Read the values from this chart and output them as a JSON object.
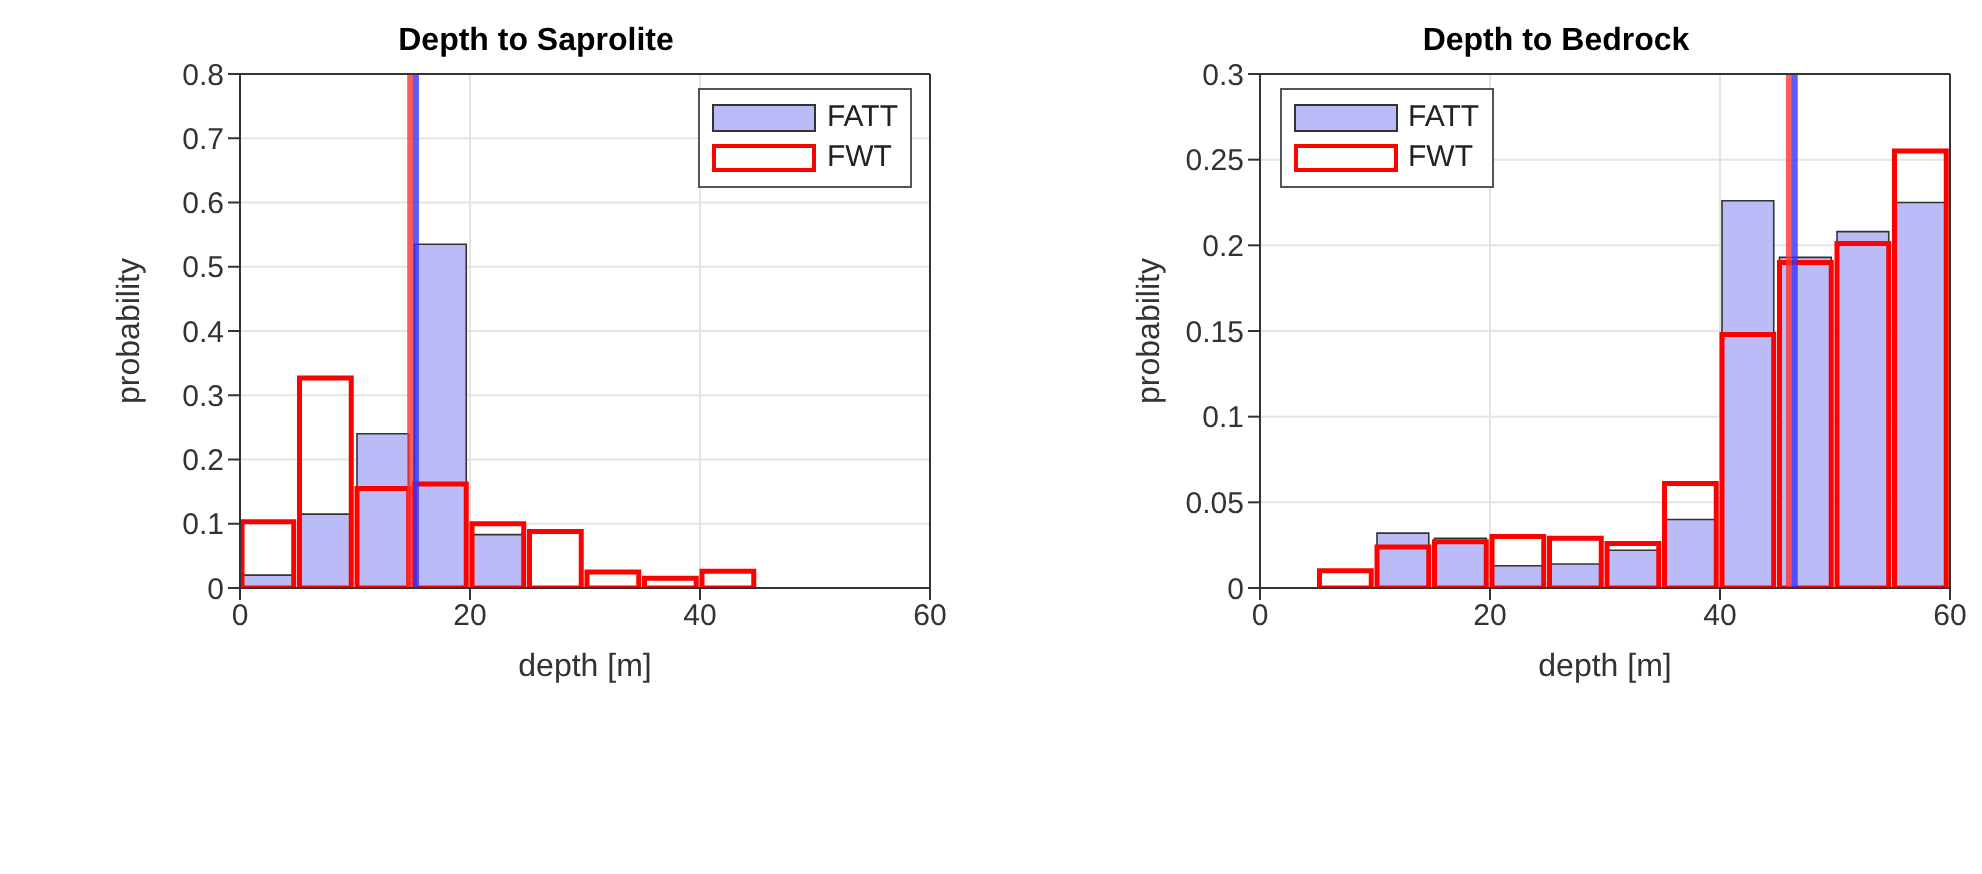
{
  "chart_data": [
    {
      "type": "histogram",
      "title": "Depth to Saprolite",
      "xlabel": "depth [m]",
      "ylabel": "probability",
      "bins": [
        0,
        5,
        10,
        15,
        20,
        25,
        30,
        35,
        40,
        45,
        50,
        55,
        60
      ],
      "series": [
        {
          "name": "FATT",
          "color": "#bbbbf8",
          "values": [
            0.02,
            0.115,
            0.24,
            0.535,
            0.083,
            0,
            0,
            0,
            0,
            0,
            0,
            0
          ]
        },
        {
          "name": "FWT",
          "color": "#ff0000",
          "values": [
            0.103,
            0.327,
            0.155,
            0.162,
            0.1,
            0.088,
            0.025,
            0.015,
            0.026,
            0,
            0,
            0
          ]
        }
      ],
      "ref_lines": [
        {
          "axis": "x",
          "value": 14.8,
          "color": "#ff3333"
        },
        {
          "axis": "x",
          "value": 15.3,
          "color": "#3333ff"
        }
      ],
      "xlim": [
        0,
        60
      ],
      "xticks": [
        0,
        20,
        40,
        60
      ],
      "ylim": [
        0,
        0.8
      ],
      "yticks": [
        0,
        0.1,
        0.2,
        0.3,
        0.4,
        0.5,
        0.6,
        0.7,
        0.8
      ],
      "grid": true,
      "legend": "top right"
    },
    {
      "type": "histogram",
      "title": "Depth to Bedrock",
      "xlabel": "depth [m]",
      "ylabel": "probability",
      "bins": [
        0,
        5,
        10,
        15,
        20,
        25,
        30,
        35,
        40,
        45,
        50,
        55,
        60
      ],
      "series": [
        {
          "name": "FATT",
          "color": "#bbbbf8",
          "values": [
            0,
            0,
            0.032,
            0.029,
            0.013,
            0.014,
            0.022,
            0.04,
            0.226,
            0.193,
            0.208,
            0.225
          ]
        },
        {
          "name": "FWT",
          "color": "#ff0000",
          "values": [
            0,
            0.01,
            0.024,
            0.027,
            0.03,
            0.029,
            0.026,
            0.061,
            0.148,
            0.19,
            0.201,
            0.255
          ]
        }
      ],
      "ref_lines": [
        {
          "axis": "x",
          "value": 46,
          "color": "#ff3333"
        },
        {
          "axis": "x",
          "value": 46.5,
          "color": "#3333ff"
        }
      ],
      "xlim": [
        0,
        60
      ],
      "xticks": [
        0,
        20,
        40,
        60
      ],
      "ylim": [
        0,
        0.3
      ],
      "yticks": [
        0,
        0.05,
        0.1,
        0.15,
        0.2,
        0.25,
        0.3
      ],
      "grid": true,
      "legend": "top left"
    }
  ]
}
